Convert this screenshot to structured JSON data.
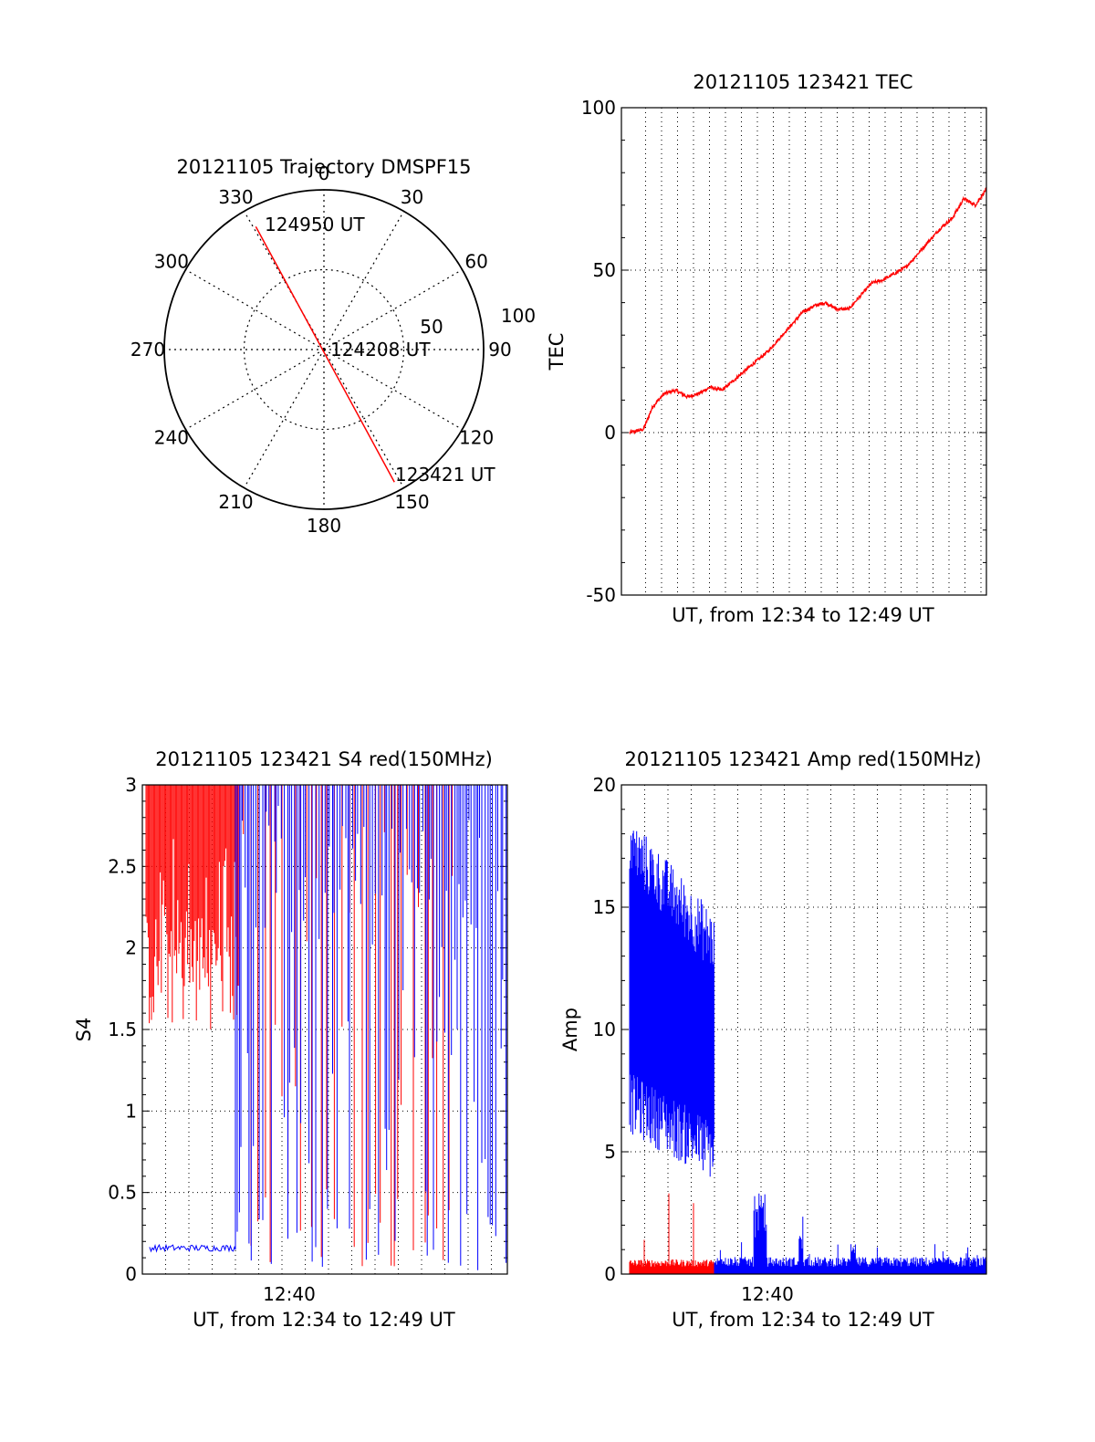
{
  "colors": {
    "red": "#ff0000",
    "blue": "#0000ff",
    "frame": "#000000"
  },
  "chart_data": [
    {
      "type": "polar",
      "title": "20121105 Trajectory DMSPF15",
      "angle_labels": [
        "0",
        "30",
        "60",
        "90",
        "120",
        "150",
        "180",
        "210",
        "240",
        "270",
        "300",
        "330"
      ],
      "radial_labels": [
        "50",
        "100"
      ],
      "rlim": [
        0,
        100
      ],
      "track": {
        "start": {
          "label": "123421 UT",
          "azimuth": 152,
          "zenith": 94
        },
        "mid": {
          "label": "124208 UT",
          "azimuth": 0,
          "zenith": 0
        },
        "end": {
          "label": "124950 UT",
          "azimuth": 331,
          "zenith": 88
        }
      }
    },
    {
      "type": "line",
      "title": "20121105 123421 TEC",
      "xlabel": "UT, from 12:34 to 12:49 UT",
      "ylabel": "TEC",
      "xlim": [
        "12:34:21",
        "12:49:50"
      ],
      "ylim": [
        -50,
        100
      ],
      "yticks": [
        "-50",
        "0",
        "50",
        "100"
      ],
      "grid": true,
      "series": [
        {
          "color": "red",
          "x_min": [
            0,
            0.6,
            1,
            1.5,
            2,
            2.5,
            3,
            3.5,
            4,
            4.5,
            5,
            5.5,
            6,
            6.5,
            7,
            7.5,
            8,
            8.5,
            9,
            9.5,
            10,
            10.5,
            11,
            11.5,
            12,
            12.5,
            13,
            13.5,
            14,
            14.5,
            15,
            15.48
          ],
          "values": [
            0,
            1,
            8,
            12,
            13,
            11,
            12,
            14,
            13,
            16,
            19,
            22,
            25,
            29,
            33,
            37,
            39,
            40,
            38,
            38,
            42,
            46,
            47,
            49,
            51,
            55,
            59,
            63,
            66,
            72,
            70,
            75
          ]
        }
      ]
    },
    {
      "type": "line",
      "title": "20121105 123421 S4 red(150MHz)",
      "xlabel": "UT, from 12:34 to 12:49 UT",
      "ylabel": "S4",
      "xlim": [
        "12:34:21",
        "12:49:50"
      ],
      "ylim": [
        0,
        3
      ],
      "yticks": [
        "0",
        "0.5",
        "1",
        "1.5",
        "2",
        "2.5",
        "3"
      ],
      "xticks": [
        "12:40"
      ],
      "grid": true,
      "series": [
        {
          "color": "red",
          "description_values": [
            2.9,
            1.5,
            2.8,
            1.6,
            3.0,
            2.1,
            2.9,
            1.9,
            3.0,
            2.2
          ]
        },
        {
          "color": "blue",
          "description_values": [
            0.15,
            0.17,
            0.16,
            0.18,
            3.0,
            0.2,
            2.8,
            0.4,
            3.0,
            0.1,
            3.0,
            0.7,
            3.0,
            0.9,
            3.0
          ]
        }
      ]
    },
    {
      "type": "line",
      "title": "20121105 123421 Amp red(150MHz)",
      "xlabel": "UT, from 12:34 to 12:49 UT",
      "ylabel": "Amp",
      "xlim": [
        "12:34:21",
        "12:49:50"
      ],
      "ylim": [
        0,
        20
      ],
      "yticks": [
        "0",
        "5",
        "10",
        "15",
        "20"
      ],
      "xticks": [
        "12:40"
      ],
      "grid": true,
      "series": [
        {
          "color": "blue",
          "segments": [
            {
              "x_min": [
                0,
                3.6
              ],
              "band_low": [
                7,
                5
              ],
              "band_high": [
                17,
                13
              ]
            },
            {
              "x_min": [
                3.6,
                15.48
              ],
              "band_low": [
                0,
                0
              ],
              "band_high": [
                0.5,
                0.6
              ]
            }
          ]
        },
        {
          "color": "red",
          "segments": [
            {
              "x_min": [
                0,
                3.6
              ],
              "band_low": [
                0,
                0
              ],
              "band_high": [
                0.5,
                0.5
              ]
            }
          ]
        }
      ]
    }
  ]
}
